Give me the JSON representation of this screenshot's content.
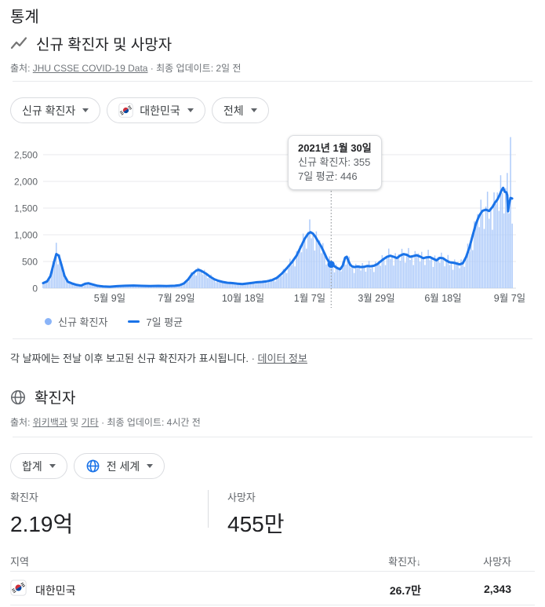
{
  "page": {
    "title": "통계"
  },
  "section_new_cases": {
    "title": "신규 확진자 및 사망자",
    "source_prefix": "출처: ",
    "source_link": "JHU CSSE COVID-19 Data",
    "source_suffix": " · 최종 업데이트: 2일 전",
    "filters": [
      {
        "label": "신규 확진자"
      },
      {
        "label": "대한민국",
        "icon": "kr-flag"
      },
      {
        "label": "전체"
      }
    ],
    "legend": [
      {
        "label": "신규 확진자",
        "swatch": "dot",
        "color": "#8ab4f8"
      },
      {
        "label": "7일 평균",
        "swatch": "line",
        "color": "#1a73e8"
      }
    ],
    "note": "각 날짜에는 전날 이후 보고된 신규 확진자가 표시됩니다. ",
    "note_separator": "· ",
    "note_link": "데이터 정보"
  },
  "tooltip": {
    "date": "2021년 1월 30일",
    "line1": "신규 확진자: 355",
    "line2": "7일 평균: 446"
  },
  "chart_data": {
    "type": "bar+line",
    "title": "신규 확진자 및 사망자 (대한민국)",
    "grid": true,
    "ylim": [
      0,
      2500
    ],
    "y_ticks": [
      "0",
      "500",
      "1,000",
      "1,500",
      "2,000",
      "2,500"
    ],
    "x_tick_days": [
      81,
      162,
      243,
      324,
      405,
      486,
      567
    ],
    "x_tick_labels": [
      "5월 9일",
      "7월 29일",
      "10월 18일",
      "1월 7일",
      "3월 29일",
      "6월 18일",
      "9월 7일"
    ],
    "x_range_days": [
      0,
      570
    ],
    "highlight": {
      "day": 350,
      "date": "2021년 1월 30일",
      "daily_value": 355,
      "avg_value": 446
    },
    "series": [
      {
        "name": "신규 확진자",
        "type": "bar",
        "color": "#aecbfa",
        "estimation": {
          "interval_days": 2,
          "noise_pattern": [
            1.08,
            0.84,
            1.18,
            0.96,
            0.76,
            1.04,
            1.24,
            0.9,
            1.02,
            0.72,
            1.14,
            0.97
          ],
          "overrides": {
            "16": 851,
            "568": 2830
          }
        }
      },
      {
        "name": "7일 평균",
        "type": "line",
        "color": "#1a73e8",
        "points": [
          [
            0,
            95
          ],
          [
            5,
            130
          ],
          [
            9,
            230
          ],
          [
            13,
            470
          ],
          [
            16,
            640
          ],
          [
            19,
            610
          ],
          [
            22,
            450
          ],
          [
            26,
            230
          ],
          [
            30,
            120
          ],
          [
            35,
            90
          ],
          [
            40,
            65
          ],
          [
            46,
            48
          ],
          [
            51,
            82
          ],
          [
            55,
            92
          ],
          [
            60,
            70
          ],
          [
            66,
            45
          ],
          [
            73,
            33
          ],
          [
            81,
            28
          ],
          [
            90,
            38
          ],
          [
            100,
            46
          ],
          [
            110,
            50
          ],
          [
            120,
            44
          ],
          [
            130,
            40
          ],
          [
            140,
            44
          ],
          [
            150,
            40
          ],
          [
            160,
            46
          ],
          [
            166,
            58
          ],
          [
            171,
            88
          ],
          [
            176,
            160
          ],
          [
            181,
            265
          ],
          [
            186,
            330
          ],
          [
            189,
            345
          ],
          [
            193,
            318
          ],
          [
            198,
            272
          ],
          [
            203,
            215
          ],
          [
            208,
            168
          ],
          [
            213,
            138
          ],
          [
            218,
            118
          ],
          [
            224,
            102
          ],
          [
            230,
            96
          ],
          [
            236,
            84
          ],
          [
            242,
            76
          ],
          [
            248,
            88
          ],
          [
            254,
            100
          ],
          [
            260,
            112
          ],
          [
            266,
            118
          ],
          [
            272,
            130
          ],
          [
            278,
            150
          ],
          [
            284,
            192
          ],
          [
            290,
            272
          ],
          [
            296,
            372
          ],
          [
            302,
            480
          ],
          [
            308,
            610
          ],
          [
            313,
            770
          ],
          [
            318,
            930
          ],
          [
            322,
            1020
          ],
          [
            325,
            1048
          ],
          [
            328,
            1020
          ],
          [
            331,
            960
          ],
          [
            334,
            880
          ],
          [
            338,
            780
          ],
          [
            342,
            650
          ],
          [
            345,
            550
          ],
          [
            348,
            480
          ],
          [
            350,
            446
          ],
          [
            352,
            435
          ],
          [
            355,
            400
          ],
          [
            358,
            372
          ],
          [
            361,
            355
          ],
          [
            364,
            420
          ],
          [
            367,
            570
          ],
          [
            369,
            590
          ],
          [
            371,
            510
          ],
          [
            373,
            445
          ],
          [
            375,
            412
          ],
          [
            378,
            396
          ],
          [
            382,
            406
          ],
          [
            386,
            396
          ],
          [
            390,
            400
          ],
          [
            394,
            416
          ],
          [
            398,
            410
          ],
          [
            402,
            420
          ],
          [
            406,
            448
          ],
          [
            410,
            500
          ],
          [
            414,
            548
          ],
          [
            418,
            588
          ],
          [
            422,
            608
          ],
          [
            426,
            588
          ],
          [
            430,
            565
          ],
          [
            434,
            612
          ],
          [
            438,
            638
          ],
          [
            442,
            625
          ],
          [
            446,
            588
          ],
          [
            450,
            602
          ],
          [
            454,
            618
          ],
          [
            458,
            592
          ],
          [
            462,
            562
          ],
          [
            466,
            578
          ],
          [
            470,
            582
          ],
          [
            474,
            552
          ],
          [
            478,
            522
          ],
          [
            482,
            568
          ],
          [
            486,
            560
          ],
          [
            490,
            518
          ],
          [
            494,
            485
          ],
          [
            498,
            478
          ],
          [
            502,
            465
          ],
          [
            506,
            445
          ],
          [
            510,
            468
          ],
          [
            514,
            585
          ],
          [
            518,
            760
          ],
          [
            522,
            990
          ],
          [
            526,
            1210
          ],
          [
            530,
            1360
          ],
          [
            534,
            1450
          ],
          [
            538,
            1470
          ],
          [
            542,
            1445
          ],
          [
            546,
            1520
          ],
          [
            549,
            1600
          ],
          [
            552,
            1660
          ],
          [
            555,
            1755
          ],
          [
            557,
            1830
          ],
          [
            559,
            1880
          ],
          [
            561,
            1805
          ],
          [
            563,
            1795
          ],
          [
            564,
            1740
          ],
          [
            565,
            1440
          ],
          [
            566,
            1560
          ],
          [
            568,
            1690
          ],
          [
            570,
            1680
          ]
        ]
      }
    ]
  },
  "section_cases": {
    "title": "확진자",
    "source_prefix": "출처: ",
    "source_link1": "위키백과",
    "source_mid": " 및 ",
    "source_link2": "기타",
    "source_suffix": " · 최종 업데이트: 4시간 전",
    "filters": [
      {
        "label": "합계"
      },
      {
        "label": "전 세계",
        "icon": "globe"
      }
    ],
    "stats": [
      {
        "label": "확진자",
        "value": "2.19억"
      },
      {
        "label": "사망자",
        "value": "455만"
      }
    ],
    "table": {
      "headers": [
        "지역",
        "확진자",
        "사망자"
      ],
      "sort_arrow": "↓",
      "rows": [
        {
          "region": "대한민국",
          "cases": "26.7만",
          "deaths": "2,343"
        }
      ]
    }
  }
}
